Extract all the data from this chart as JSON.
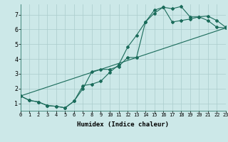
{
  "title": "",
  "xlabel": "Humidex (Indice chaleur)",
  "bg_color": "#cce8e8",
  "grid_color": "#aacccc",
  "line_color": "#1a6b5a",
  "xmin": 0,
  "xmax": 23,
  "ymin": 0.5,
  "ymax": 7.7,
  "yticks": [
    1,
    2,
    3,
    4,
    5,
    6,
    7
  ],
  "xticks": [
    0,
    1,
    2,
    3,
    4,
    5,
    6,
    7,
    8,
    9,
    10,
    11,
    12,
    13,
    14,
    15,
    16,
    17,
    18,
    19,
    20,
    21,
    22,
    23
  ],
  "line1_x": [
    0,
    1,
    2,
    3,
    4,
    5,
    6,
    7,
    8,
    9,
    10,
    11,
    12,
    13,
    14,
    15,
    16,
    17,
    18,
    19,
    20,
    21,
    22,
    23
  ],
  "line1_y": [
    1.5,
    1.2,
    1.1,
    0.85,
    0.8,
    0.7,
    1.15,
    2.2,
    2.3,
    2.5,
    3.1,
    3.6,
    4.8,
    5.6,
    6.5,
    7.1,
    7.5,
    7.4,
    7.55,
    6.85,
    6.85,
    6.9,
    6.6,
    6.15
  ],
  "line2_x": [
    0,
    1,
    2,
    3,
    4,
    5,
    6,
    7,
    8,
    9,
    10,
    11,
    12,
    13,
    14,
    15,
    16,
    17,
    18,
    19,
    20,
    21,
    22,
    23
  ],
  "line2_y": [
    1.5,
    1.2,
    1.1,
    0.85,
    0.8,
    0.7,
    1.15,
    2.0,
    3.15,
    3.3,
    3.3,
    3.5,
    4.1,
    4.1,
    6.5,
    7.3,
    7.5,
    6.5,
    6.6,
    6.7,
    6.85,
    6.6,
    6.15,
    6.1
  ],
  "line3_x": [
    0,
    23
  ],
  "line3_y": [
    1.5,
    6.1
  ]
}
